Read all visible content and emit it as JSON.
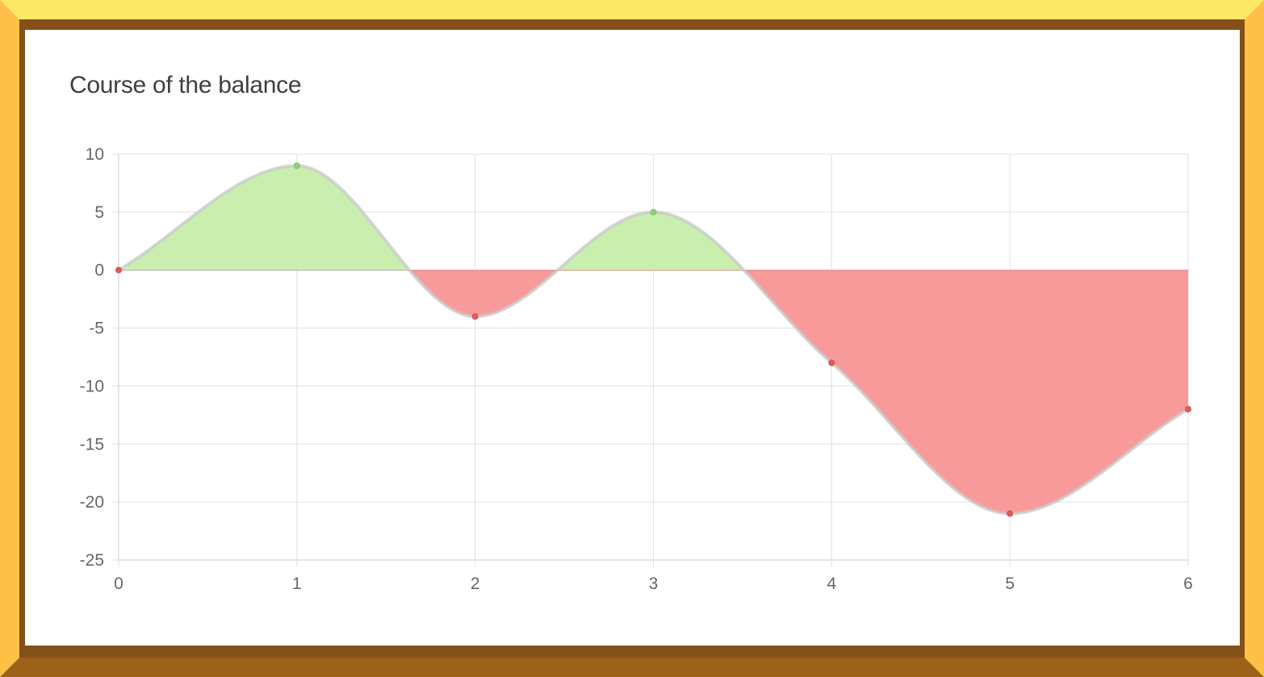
{
  "chart_data": {
    "type": "area",
    "title": "Course of the balance",
    "x": [
      0,
      1,
      2,
      3,
      4,
      5,
      6
    ],
    "series": [
      {
        "values": [
          0,
          9,
          -4,
          5,
          -8,
          -21,
          -12
        ]
      }
    ],
    "xlim": [
      0,
      6
    ],
    "ylim": [
      -25,
      10
    ],
    "x_ticks": [
      "0",
      "1",
      "2",
      "3",
      "4",
      "5",
      "6"
    ],
    "y_ticks": [
      "10",
      "5",
      "0",
      "-5",
      "-10",
      "-15",
      "-20",
      "-25"
    ],
    "grid": true,
    "legend": "none",
    "colors": {
      "positive_fill": "#c9eeae",
      "negative_fill": "#f99a9a",
      "positive_point": "#8fd279",
      "negative_point": "#e25b5b",
      "line": "#c8c8c8"
    }
  },
  "frame": {
    "colors": {
      "top": "#fde865",
      "side": "#ffc046",
      "bottom": "#9c6218",
      "inner": "#84501a"
    }
  }
}
